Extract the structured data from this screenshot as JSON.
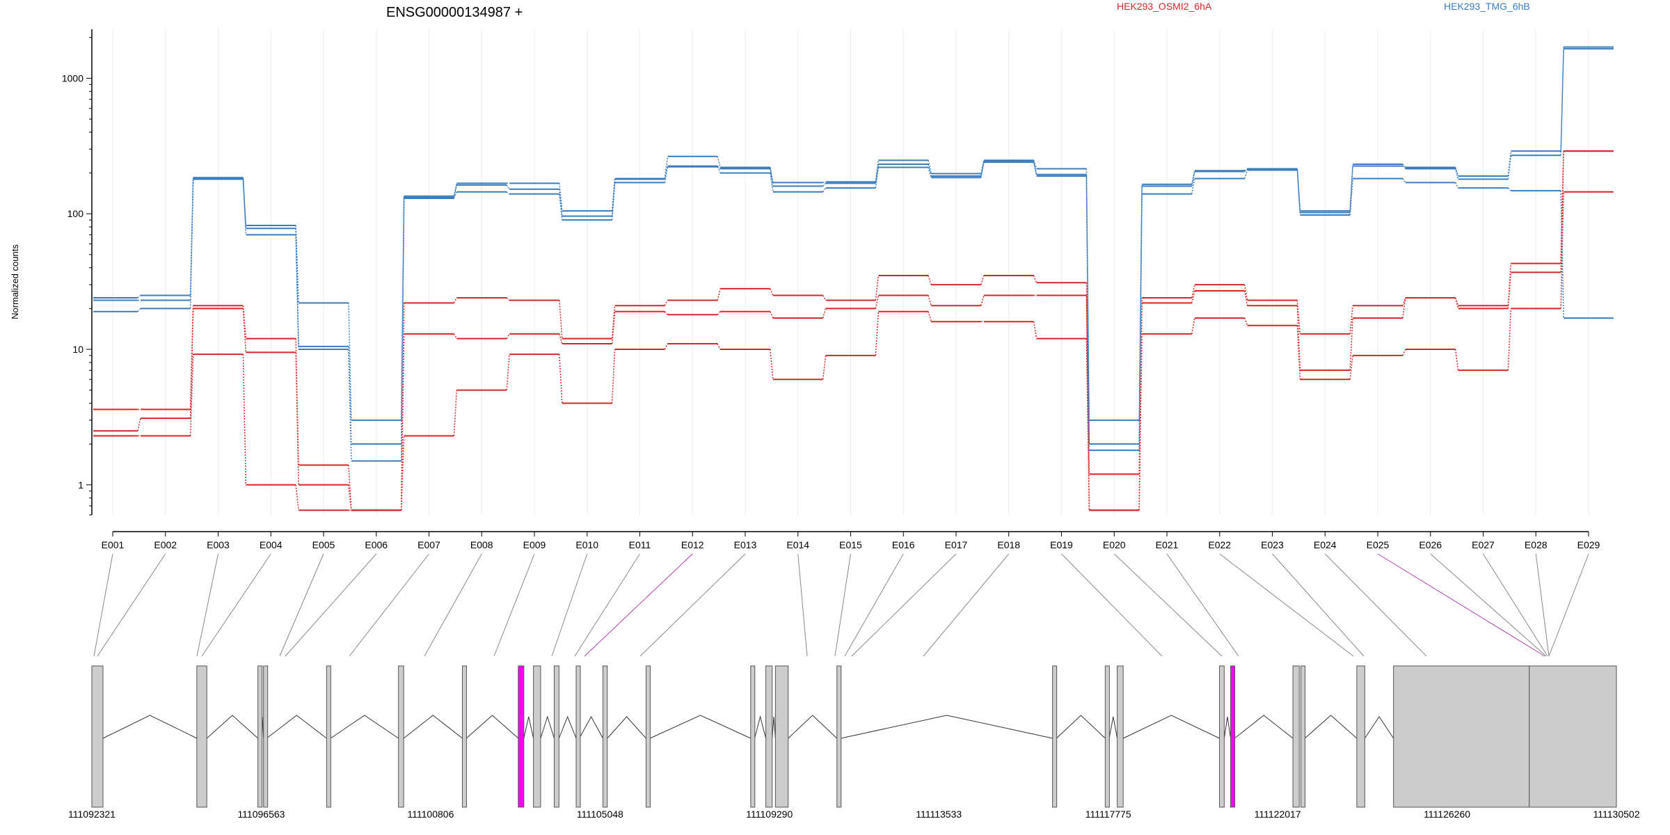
{
  "chart_data": {
    "type": "line",
    "title": "ENSG00000134987 +",
    "ylabel": "Normalized counts",
    "yscale": "log",
    "ylim": [
      0.6,
      2300
    ],
    "yticks": [
      1,
      10,
      100,
      1000
    ],
    "grid": "vertical",
    "legend_placement": "top",
    "categories": [
      "E001",
      "E002",
      "E003",
      "E004",
      "E005",
      "E006",
      "E007",
      "E008",
      "E009",
      "E010",
      "E011",
      "E012",
      "E013",
      "E014",
      "E015",
      "E016",
      "E017",
      "E018",
      "E019",
      "E020",
      "E021",
      "E022",
      "E023",
      "E024",
      "E025",
      "E026",
      "E027",
      "E028",
      "E029"
    ],
    "groups": [
      {
        "name": "HEK293_OSMI2_6hA",
        "color": "#d62728"
      },
      {
        "name": "HEK293_TMG_6hB",
        "color": "#3a7dbf"
      }
    ],
    "series": [
      {
        "group": 0,
        "values": [
          3.6,
          3.6,
          21,
          12,
          1.4,
          0.65,
          22,
          24,
          23,
          12,
          21,
          23,
          28,
          25,
          23,
          35,
          30,
          35,
          31,
          0.65,
          24,
          30,
          23,
          13,
          21,
          24,
          21,
          43,
          290
        ]
      },
      {
        "group": 0,
        "values": [
          2.5,
          3.1,
          20,
          9.5,
          1.0,
          0.65,
          13,
          12,
          13,
          11,
          19,
          18,
          19,
          17,
          20,
          25,
          21,
          25,
          25,
          1.2,
          22,
          27,
          21,
          7,
          17,
          24,
          20,
          37,
          290
        ]
      },
      {
        "group": 0,
        "values": [
          2.3,
          2.3,
          9.2,
          1.0,
          0.65,
          0.65,
          2.3,
          5,
          9.2,
          4,
          10,
          11,
          10,
          6,
          9,
          19,
          16,
          16,
          12,
          0.65,
          13,
          17,
          15,
          6,
          9,
          10,
          7,
          20,
          145
        ]
      },
      {
        "group": 1,
        "values": [
          24,
          25,
          185,
          82,
          22,
          3,
          135,
          168,
          168,
          105,
          182,
          265,
          220,
          170,
          172,
          248,
          198,
          248,
          215,
          3,
          165,
          208,
          215,
          105,
          232,
          220,
          190,
          290,
          1700
        ]
      },
      {
        "group": 1,
        "values": [
          23,
          23,
          182,
          78,
          10.5,
          2,
          132,
          163,
          152,
          96,
          180,
          225,
          215,
          160,
          168,
          232,
          190,
          245,
          195,
          2,
          160,
          205,
          212,
          102,
          225,
          215,
          180,
          270,
          1650
        ]
      },
      {
        "group": 1,
        "values": [
          19,
          20,
          180,
          70,
          10,
          1.5,
          130,
          145,
          140,
          90,
          170,
          222,
          200,
          145,
          155,
          220,
          185,
          240,
          190,
          1.8,
          140,
          182,
          210,
          98,
          182,
          170,
          155,
          148,
          17
        ]
      }
    ],
    "genomic_axis": {
      "ticks": [
        "111092321",
        "111096563",
        "111100806",
        "111105048",
        "111109290",
        "111113533",
        "111117775",
        "111122017",
        "111126260",
        "111130502"
      ]
    },
    "highlighted_exons": [
      "E012",
      "E025"
    ],
    "highlight_color": "#ff00ff"
  }
}
